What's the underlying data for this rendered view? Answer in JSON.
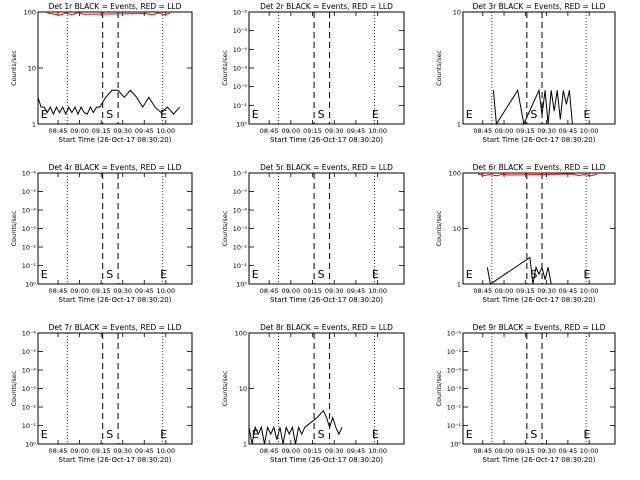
{
  "chart_data": [
    {
      "type": "line",
      "title": "Det 1r BLACK = Events, RED = LLD",
      "xlabel": "Start Time (26-Oct-17 08:30:20)",
      "ylabel": "Counts/sec",
      "x_ticks": [
        "08:45",
        "09:00",
        "09:15",
        "09:30",
        "09:45",
        "10:00"
      ],
      "y_scale": "log",
      "y_ticks": [
        "1",
        "10",
        "100"
      ],
      "ylim": [
        1,
        100
      ],
      "markers": [
        "E",
        "S",
        "E"
      ],
      "series": [
        {
          "name": "Events",
          "color": "#000000",
          "points": [
            [
              0.0,
              3
            ],
            [
              0.02,
              2
            ],
            [
              0.04,
              2
            ],
            [
              0.06,
              1.6
            ],
            [
              0.08,
              2
            ],
            [
              0.1,
              1.5
            ],
            [
              0.12,
              2
            ],
            [
              0.14,
              1.6
            ],
            [
              0.16,
              2
            ],
            [
              0.18,
              1.5
            ],
            [
              0.2,
              2
            ],
            [
              0.22,
              1.6
            ],
            [
              0.24,
              2
            ],
            [
              0.26,
              1.5
            ],
            [
              0.28,
              2
            ],
            [
              0.3,
              1.6
            ],
            [
              0.32,
              1.5
            ],
            [
              0.34,
              2
            ],
            [
              0.36,
              1.6
            ],
            [
              0.38,
              2
            ],
            [
              0.4,
              2
            ],
            [
              0.44,
              3
            ],
            [
              0.48,
              4
            ],
            [
              0.52,
              4
            ],
            [
              0.56,
              3
            ],
            [
              0.6,
              4
            ],
            [
              0.64,
              3
            ],
            [
              0.68,
              2
            ],
            [
              0.72,
              3
            ],
            [
              0.76,
              2
            ],
            [
              0.8,
              1.6
            ],
            [
              0.84,
              2
            ],
            [
              0.88,
              1.5
            ],
            [
              0.92,
              2
            ]
          ]
        },
        {
          "name": "LLD",
          "color": "#ff0000",
          "points": [
            [
              0.06,
              96
            ],
            [
              0.1,
              92
            ],
            [
              0.14,
              88
            ],
            [
              0.18,
              95
            ],
            [
              0.22,
              90
            ],
            [
              0.26,
              97
            ],
            [
              0.3,
              91
            ],
            [
              0.7,
              94
            ],
            [
              0.74,
              89
            ],
            [
              0.78,
              96
            ],
            [
              0.82,
              90
            ],
            [
              0.86,
              95
            ]
          ]
        }
      ]
    },
    {
      "type": "line",
      "title": "Det 2r BLACK = Events, RED = LLD",
      "xlabel": "Start Time (26-Oct-17 08:30:20)",
      "ylabel": "Counts/sec",
      "x_ticks": [
        "08:45",
        "09:00",
        "09:15",
        "09:30",
        "09:45",
        "10:00"
      ],
      "y_scale": "log",
      "y_ticks": [
        "10⁰",
        "10⁻¹",
        "10⁻²",
        "10⁻³",
        "10⁻⁴",
        "10⁻⁵",
        "10⁻⁶"
      ],
      "markers": [
        "E",
        "S",
        "E"
      ],
      "series": []
    },
    {
      "type": "line",
      "title": "Det 3r BLACK = Events, RED = LLD",
      "xlabel": "Start Time (26-Oct-17 08:30:20)",
      "ylabel": "Counts/sec",
      "x_ticks": [
        "08:45",
        "09:00",
        "09:15",
        "09:30",
        "09:45",
        "10:00"
      ],
      "y_scale": "log",
      "y_ticks": [
        "1",
        "10"
      ],
      "ylim": [
        1,
        10
      ],
      "markers": [
        "E",
        "S",
        "E"
      ],
      "series": [
        {
          "name": "Events",
          "color": "#000000",
          "points": [
            [
              0.2,
              2
            ],
            [
              0.22,
              1
            ],
            [
              0.36,
              2
            ],
            [
              0.4,
              1
            ],
            [
              0.5,
              2
            ],
            [
              0.52,
              1.2
            ],
            [
              0.54,
              2
            ],
            [
              0.56,
              1
            ],
            [
              0.58,
              2
            ],
            [
              0.6,
              1.3
            ],
            [
              0.62,
              2
            ],
            [
              0.64,
              1.1
            ],
            [
              0.66,
              2
            ],
            [
              0.68,
              1.5
            ],
            [
              0.7,
              2
            ],
            [
              0.72,
              1
            ]
          ]
        }
      ]
    },
    {
      "type": "line",
      "title": "Det 4r BLACK = Events, RED = LLD",
      "xlabel": "Start Time (26-Oct-17 08:30:20)",
      "ylabel": "Counts/sec",
      "x_ticks": [
        "08:45",
        "09:00",
        "09:15",
        "09:30",
        "09:45",
        "10:00"
      ],
      "y_scale": "log",
      "y_ticks": [
        "10⁰",
        "10⁻¹",
        "10⁻²",
        "10⁻³",
        "10⁻⁴",
        "10⁻⁵",
        "10⁻⁶"
      ],
      "markers": [
        "E",
        "S",
        "E"
      ],
      "series": []
    },
    {
      "type": "line",
      "title": "Det 5r BLACK = Events, RED = LLD",
      "xlabel": "Start Time (26-Oct-17 08:30:20)",
      "ylabel": "Counts/sec",
      "x_ticks": [
        "08:45",
        "09:00",
        "09:15",
        "09:30",
        "09:45",
        "10:00"
      ],
      "y_scale": "log",
      "y_ticks": [
        "10⁰",
        "10⁻¹",
        "10⁻²",
        "10⁻³",
        "10⁻⁴",
        "10⁻⁵",
        "10⁻⁶"
      ],
      "markers": [
        "E",
        "S",
        "E"
      ],
      "series": []
    },
    {
      "type": "line",
      "title": "Det 6r BLACK = Events, RED = LLD",
      "xlabel": "Start Time (26-Oct-17 08:30:20)",
      "ylabel": "Counts/sec",
      "x_ticks": [
        "08:45",
        "09:00",
        "09:15",
        "09:30",
        "09:45",
        "10:00"
      ],
      "y_scale": "log",
      "y_ticks": [
        "1",
        "10",
        "100"
      ],
      "ylim": [
        1,
        100
      ],
      "markers": [
        "E",
        "S",
        "E"
      ],
      "series": [
        {
          "name": "Events",
          "color": "#000000",
          "points": [
            [
              0.16,
              2
            ],
            [
              0.18,
              1
            ],
            [
              0.44,
              3
            ],
            [
              0.46,
              1
            ],
            [
              0.48,
              2
            ],
            [
              0.5,
              1.5
            ],
            [
              0.52,
              2
            ],
            [
              0.54,
              1.2
            ],
            [
              0.56,
              2
            ],
            [
              0.58,
              1
            ]
          ]
        },
        {
          "name": "LLD",
          "color": "#ff0000",
          "points": [
            [
              0.1,
              96
            ],
            [
              0.14,
              90
            ],
            [
              0.18,
              94
            ],
            [
              0.22,
              89
            ],
            [
              0.26,
              95
            ],
            [
              0.3,
              92
            ],
            [
              0.72,
              96
            ],
            [
              0.76,
              90
            ],
            [
              0.8,
              94
            ],
            [
              0.84,
              89
            ],
            [
              0.88,
              95
            ]
          ]
        }
      ]
    },
    {
      "type": "line",
      "title": "Det 7r BLACK = Events, RED = LLD",
      "xlabel": "Start Time (26-Oct-17 08:30:20)",
      "ylabel": "Counts/sec",
      "x_ticks": [
        "08:45",
        "09:00",
        "09:15",
        "09:30",
        "09:45",
        "10:00"
      ],
      "y_scale": "log",
      "y_ticks": [
        "10⁰",
        "10⁻¹",
        "10⁻²",
        "10⁻³",
        "10⁻⁴",
        "10⁻⁵",
        "10⁻⁶"
      ],
      "markers": [
        "E",
        "S",
        "E"
      ],
      "series": []
    },
    {
      "type": "line",
      "title": "Det 8r BLACK = Events, RED = LLD",
      "xlabel": "Start Time (26-Oct-17 08:30:20)",
      "ylabel": "Counts/sec",
      "x_ticks": [
        "08:45",
        "09:00",
        "09:15",
        "09:30",
        "09:45",
        "10:00"
      ],
      "y_scale": "log",
      "y_ticks": [
        "1",
        "10",
        "100"
      ],
      "ylim": [
        1,
        100
      ],
      "markers": [
        "E",
        "S",
        "E"
      ],
      "series": [
        {
          "name": "Events",
          "color": "#000000",
          "points": [
            [
              0.0,
              2
            ],
            [
              0.02,
              1
            ],
            [
              0.04,
              2
            ],
            [
              0.06,
              1.5
            ],
            [
              0.08,
              2
            ],
            [
              0.1,
              1
            ],
            [
              0.12,
              2
            ],
            [
              0.14,
              1.5
            ],
            [
              0.16,
              2
            ],
            [
              0.18,
              1.2
            ],
            [
              0.2,
              2
            ],
            [
              0.22,
              1
            ],
            [
              0.24,
              2
            ],
            [
              0.26,
              1.5
            ],
            [
              0.28,
              2
            ],
            [
              0.3,
              1
            ],
            [
              0.32,
              2
            ],
            [
              0.34,
              1.5
            ],
            [
              0.36,
              2
            ],
            [
              0.44,
              3
            ],
            [
              0.48,
              4
            ],
            [
              0.5,
              3
            ],
            [
              0.52,
              2
            ],
            [
              0.54,
              3
            ],
            [
              0.56,
              2
            ],
            [
              0.58,
              1.5
            ],
            [
              0.6,
              2
            ]
          ]
        }
      ]
    },
    {
      "type": "line",
      "title": "Det 9r BLACK = Events, RED = LLD",
      "xlabel": "Start Time (26-Oct-17 08:30:20)",
      "ylabel": "Counts/sec",
      "x_ticks": [
        "08:45",
        "09:00",
        "09:15",
        "09:30",
        "09:45",
        "10:00"
      ],
      "y_scale": "log",
      "y_ticks": [
        "10⁰",
        "10⁻¹",
        "10⁻²",
        "10⁻³",
        "10⁻⁴",
        "10⁻⁵",
        "10⁻⁶"
      ],
      "markers": [
        "E",
        "S",
        "E"
      ],
      "series": []
    }
  ]
}
